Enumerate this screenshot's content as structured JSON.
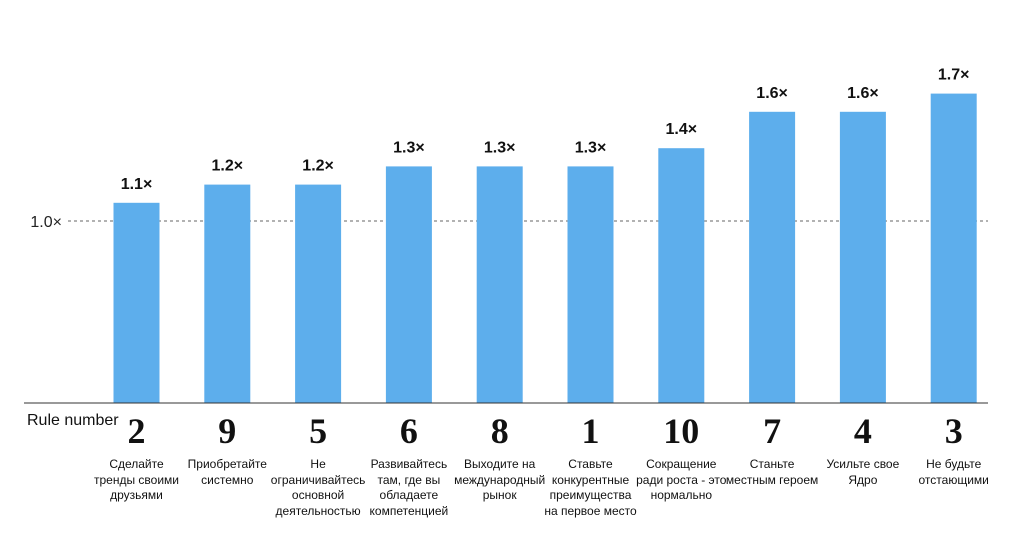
{
  "chart_data": {
    "type": "bar",
    "categories": [
      "2",
      "9",
      "5",
      "6",
      "8",
      "1",
      "10",
      "7",
      "4",
      "3"
    ],
    "values": [
      1.1,
      1.2,
      1.2,
      1.3,
      1.3,
      1.3,
      1.4,
      1.6,
      1.6,
      1.7
    ],
    "value_labels": [
      "1.1×",
      "1.2×",
      "1.2×",
      "1.3×",
      "1.3×",
      "1.3×",
      "1.4×",
      "1.6×",
      "1.6×",
      "1.7×"
    ],
    "descriptions": [
      "Сделайте тренды своими друзьями",
      "Приобретайте системно",
      "Не ограничивайтесь основной деятельностью",
      "Развивайтесь там, где вы обладаете компетенцией",
      "Выходите на международный рынок",
      "Ставьте конкурентные преимущества на первое место",
      "Сокращение ради роста - это нормально",
      "Станьте местным героем",
      "Усильте свое Ядро",
      "Не будьте отстающими"
    ],
    "xlabel": "Rule number",
    "reference_line": {
      "value": 1.0,
      "label": "1.0×",
      "style": "dashed"
    },
    "bar_color": "#5DAEEC",
    "grid": false
  }
}
